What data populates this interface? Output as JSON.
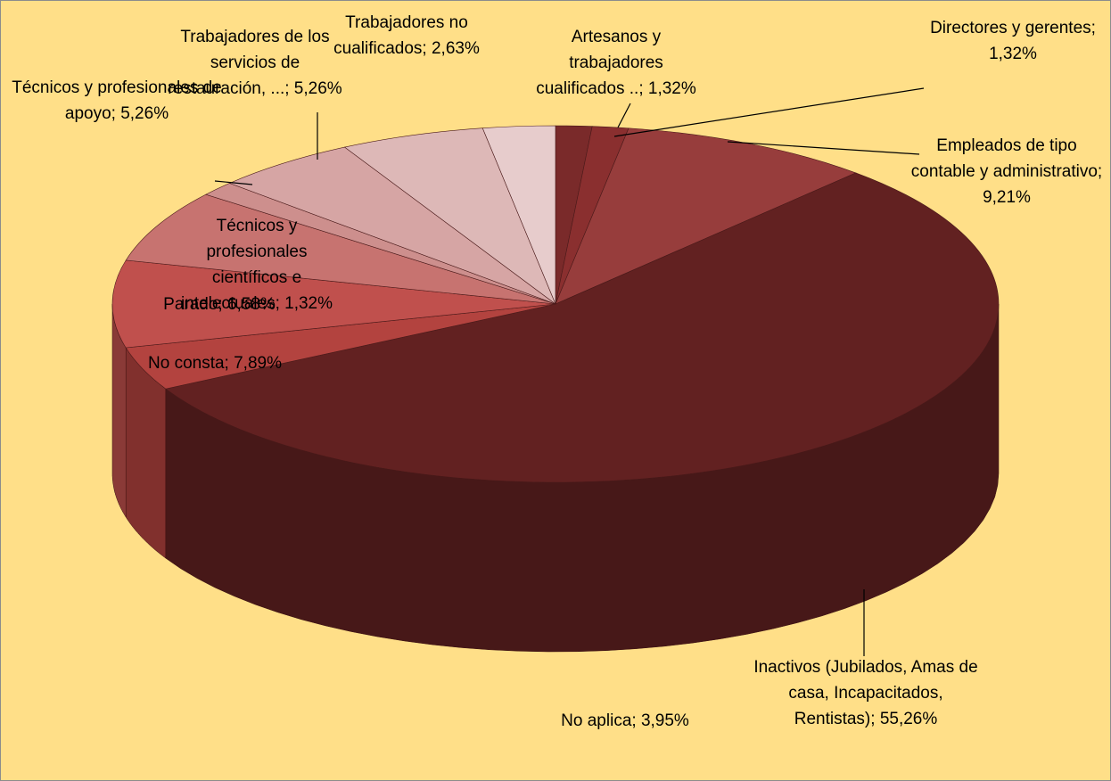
{
  "chart_data": {
    "type": "pie3d",
    "values": [
      1.32,
      1.32,
      9.21,
      55.26,
      3.95,
      7.89,
      6.58,
      1.32,
      5.26,
      5.26,
      2.63
    ],
    "value_labels": [
      "Artesanos y trabajadores cualificados ..; 1,32%",
      "Directores y gerentes; 1,32%",
      "Empleados de tipo contable y administrativo; 9,21%",
      "Inactivos (Jubilados, Amas de casa, Incapacitados, Rentistas); 55,26%",
      "No aplica; 3,95%",
      "No consta; 7,89%",
      "Parado; 6,58%",
      "Técnicos y profesionales científicos e intelectuales; 1,32%",
      "Técnicos y profesionales de apoyo; 5,26%",
      "Trabajadores de los servicios de restauración, ...; 5,26%",
      "Trabajadores no cualificados; 2,63%"
    ],
    "colors": [
      "#7a2a2a",
      "#8a2f2f",
      "#973d3c",
      "#622121",
      "#b3433f",
      "#c0504d",
      "#c77370",
      "#cd8f8d",
      "#d6a5a4",
      "#ddb8b7",
      "#e7cccc"
    ]
  }
}
